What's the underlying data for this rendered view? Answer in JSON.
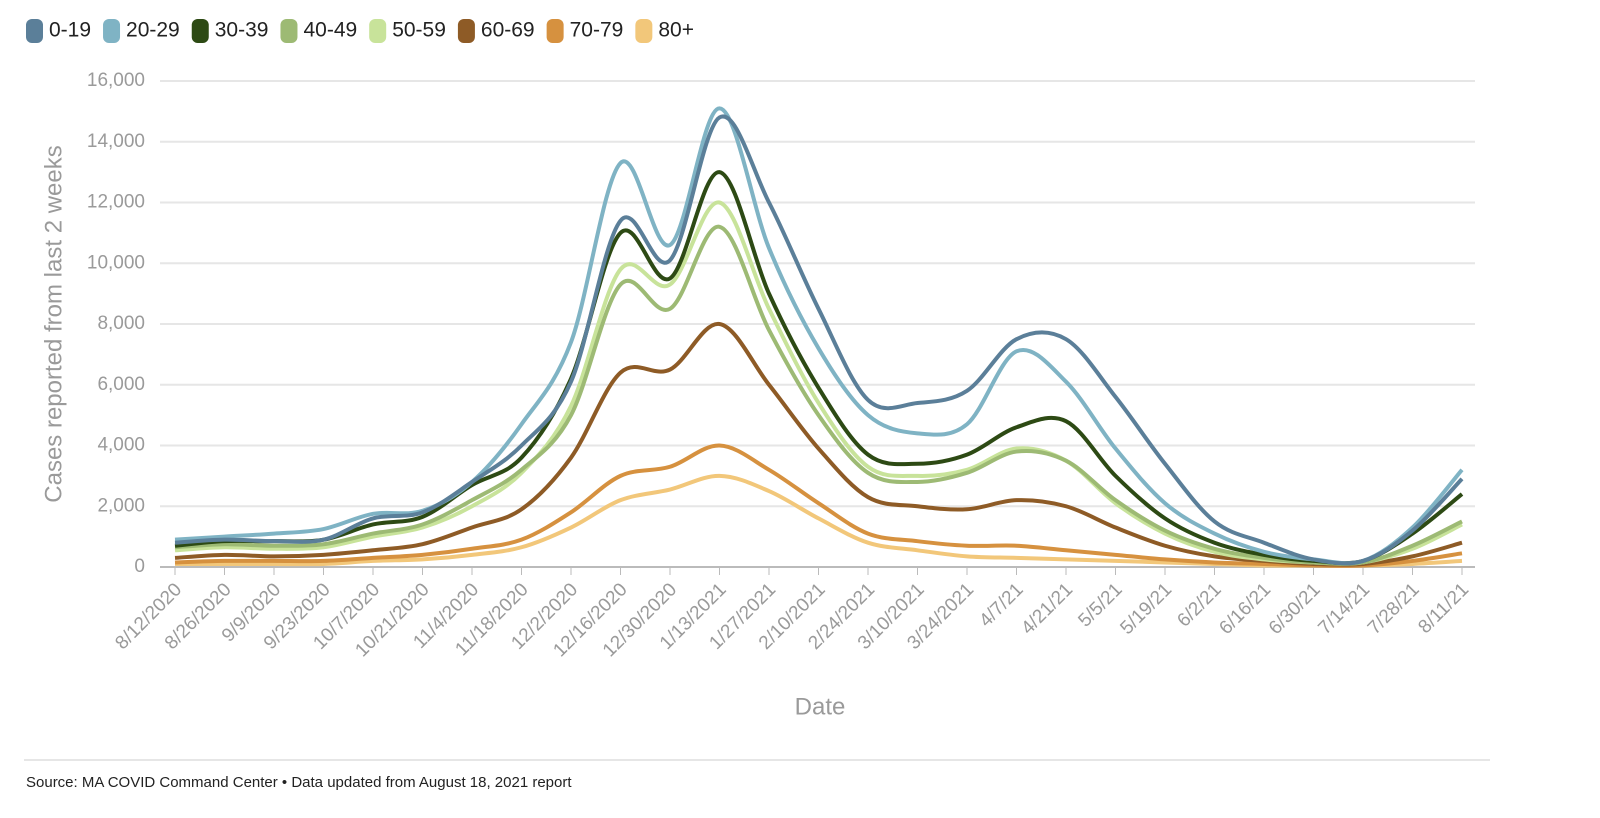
{
  "chart_data": {
    "type": "line",
    "categories": [
      "8/12/2020",
      "8/26/2020",
      "9/9/2020",
      "9/23/2020",
      "10/7/2020",
      "10/21/2020",
      "11/4/2020",
      "11/18/2020",
      "12/2/2020",
      "12/16/2020",
      "12/30/2020",
      "1/13/2021",
      "1/27/2021",
      "2/10/2021",
      "2/24/2021",
      "3/10/2021",
      "3/24/2021",
      "4/7/21",
      "4/21/21",
      "5/5/21",
      "5/19/21",
      "6/2/21",
      "6/16/21",
      "6/30/21",
      "7/14/21",
      "7/28/21",
      "8/11/21"
    ],
    "series": [
      {
        "name": "0-19",
        "color": "#5b7f99",
        "values": [
          800,
          900,
          850,
          900,
          1600,
          1800,
          2800,
          4000,
          6100,
          11400,
          10100,
          14800,
          12000,
          8500,
          5500,
          5400,
          5800,
          7500,
          7500,
          5600,
          3400,
          1500,
          800,
          250,
          200,
          1200,
          2900
        ]
      },
      {
        "name": "20-29",
        "color": "#7fb3c4",
        "values": [
          900,
          1000,
          1100,
          1250,
          1750,
          1850,
          2800,
          4700,
          7400,
          13300,
          10600,
          15100,
          10500,
          7200,
          5000,
          4400,
          4700,
          7100,
          6100,
          3900,
          2100,
          1100,
          500,
          250,
          200,
          1300,
          3200
        ]
      },
      {
        "name": "30-39",
        "color": "#2d4a14",
        "values": [
          700,
          850,
          850,
          900,
          1400,
          1650,
          2700,
          3600,
          6200,
          11000,
          9500,
          13000,
          9000,
          5900,
          3700,
          3400,
          3700,
          4600,
          4800,
          3000,
          1600,
          800,
          400,
          200,
          200,
          1100,
          2400
        ]
      },
      {
        "name": "40-49",
        "color": "#9dba74",
        "values": [
          650,
          750,
          700,
          750,
          1100,
          1400,
          2200,
          3200,
          5000,
          9300,
          8500,
          11200,
          7800,
          5000,
          3100,
          2800,
          3100,
          3800,
          3500,
          2200,
          1200,
          600,
          300,
          150,
          150,
          700,
          1500
        ]
      },
      {
        "name": "50-59",
        "color": "#c8e39a",
        "values": [
          550,
          650,
          600,
          650,
          1000,
          1300,
          2000,
          3100,
          5300,
          9800,
          9300,
          12000,
          8500,
          5400,
          3300,
          3000,
          3200,
          3900,
          3500,
          2100,
          1100,
          500,
          250,
          150,
          150,
          600,
          1400
        ]
      },
      {
        "name": "60-69",
        "color": "#8e5b26",
        "values": [
          300,
          400,
          350,
          400,
          550,
          750,
          1300,
          1900,
          3600,
          6400,
          6500,
          8000,
          6000,
          3900,
          2300,
          2000,
          1900,
          2200,
          2000,
          1300,
          700,
          350,
          200,
          100,
          100,
          350,
          800
        ]
      },
      {
        "name": "70-79",
        "color": "#d6913f",
        "values": [
          150,
          200,
          200,
          200,
          300,
          400,
          600,
          900,
          1800,
          3000,
          3300,
          4000,
          3200,
          2100,
          1100,
          850,
          700,
          700,
          550,
          400,
          250,
          150,
          100,
          50,
          50,
          200,
          450
        ]
      },
      {
        "name": "80+",
        "color": "#f2c77a",
        "values": [
          100,
          100,
          100,
          100,
          200,
          250,
          400,
          650,
          1300,
          2200,
          2550,
          3000,
          2500,
          1600,
          800,
          550,
          350,
          300,
          250,
          200,
          150,
          100,
          50,
          50,
          50,
          100,
          200
        ]
      }
    ],
    "ylim": [
      0,
      16000
    ],
    "yticks": [
      0,
      {
        "value": 2000,
        "label": "2,000"
      },
      {
        "value": 4000,
        "label": "4,000"
      },
      {
        "value": 6000,
        "label": "6,000"
      },
      {
        "value": 8000,
        "label": "8,000"
      },
      {
        "value": 10000,
        "label": "10,000"
      },
      {
        "value": 12000,
        "label": "12,000"
      },
      {
        "value": 14000,
        "label": "14,000"
      },
      {
        "value": 16000,
        "label": "16,000"
      }
    ],
    "grid": true,
    "legend": "top-left",
    "x_label": "Date",
    "y_label": "Cases reported from last 2 weeks",
    "source": "Source: MA COVID Command Center • Data updated from August 18, 2021 report"
  }
}
